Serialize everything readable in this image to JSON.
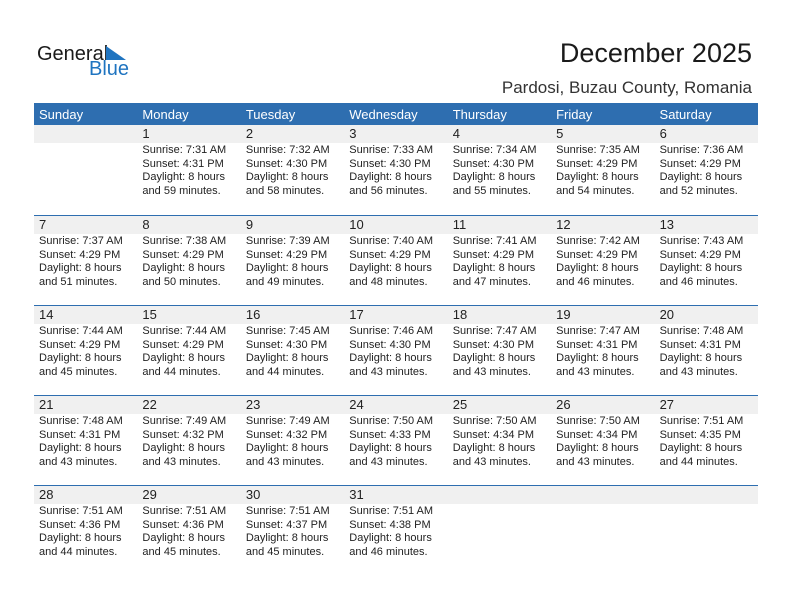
{
  "logo": {
    "line1": "General",
    "line2": "Blue",
    "accent": "#1f74c0"
  },
  "title": "December 2025",
  "location": "Pardosi, Buzau County, Romania",
  "colors": {
    "header": "#2e6eb0",
    "band": "#f0f0f0"
  },
  "weekdays": [
    "Sunday",
    "Monday",
    "Tuesday",
    "Wednesday",
    "Thursday",
    "Friday",
    "Saturday"
  ],
  "weeks": [
    [
      null,
      {
        "day": "1",
        "sunrise": "Sunrise: 7:31 AM",
        "sunset": "Sunset: 4:31 PM",
        "daylight1": "Daylight: 8 hours",
        "daylight2": "and 59 minutes."
      },
      {
        "day": "2",
        "sunrise": "Sunrise: 7:32 AM",
        "sunset": "Sunset: 4:30 PM",
        "daylight1": "Daylight: 8 hours",
        "daylight2": "and 58 minutes."
      },
      {
        "day": "3",
        "sunrise": "Sunrise: 7:33 AM",
        "sunset": "Sunset: 4:30 PM",
        "daylight1": "Daylight: 8 hours",
        "daylight2": "and 56 minutes."
      },
      {
        "day": "4",
        "sunrise": "Sunrise: 7:34 AM",
        "sunset": "Sunset: 4:30 PM",
        "daylight1": "Daylight: 8 hours",
        "daylight2": "and 55 minutes."
      },
      {
        "day": "5",
        "sunrise": "Sunrise: 7:35 AM",
        "sunset": "Sunset: 4:29 PM",
        "daylight1": "Daylight: 8 hours",
        "daylight2": "and 54 minutes."
      },
      {
        "day": "6",
        "sunrise": "Sunrise: 7:36 AM",
        "sunset": "Sunset: 4:29 PM",
        "daylight1": "Daylight: 8 hours",
        "daylight2": "and 52 minutes."
      }
    ],
    [
      {
        "day": "7",
        "sunrise": "Sunrise: 7:37 AM",
        "sunset": "Sunset: 4:29 PM",
        "daylight1": "Daylight: 8 hours",
        "daylight2": "and 51 minutes."
      },
      {
        "day": "8",
        "sunrise": "Sunrise: 7:38 AM",
        "sunset": "Sunset: 4:29 PM",
        "daylight1": "Daylight: 8 hours",
        "daylight2": "and 50 minutes."
      },
      {
        "day": "9",
        "sunrise": "Sunrise: 7:39 AM",
        "sunset": "Sunset: 4:29 PM",
        "daylight1": "Daylight: 8 hours",
        "daylight2": "and 49 minutes."
      },
      {
        "day": "10",
        "sunrise": "Sunrise: 7:40 AM",
        "sunset": "Sunset: 4:29 PM",
        "daylight1": "Daylight: 8 hours",
        "daylight2": "and 48 minutes."
      },
      {
        "day": "11",
        "sunrise": "Sunrise: 7:41 AM",
        "sunset": "Sunset: 4:29 PM",
        "daylight1": "Daylight: 8 hours",
        "daylight2": "and 47 minutes."
      },
      {
        "day": "12",
        "sunrise": "Sunrise: 7:42 AM",
        "sunset": "Sunset: 4:29 PM",
        "daylight1": "Daylight: 8 hours",
        "daylight2": "and 46 minutes."
      },
      {
        "day": "13",
        "sunrise": "Sunrise: 7:43 AM",
        "sunset": "Sunset: 4:29 PM",
        "daylight1": "Daylight: 8 hours",
        "daylight2": "and 46 minutes."
      }
    ],
    [
      {
        "day": "14",
        "sunrise": "Sunrise: 7:44 AM",
        "sunset": "Sunset: 4:29 PM",
        "daylight1": "Daylight: 8 hours",
        "daylight2": "and 45 minutes."
      },
      {
        "day": "15",
        "sunrise": "Sunrise: 7:44 AM",
        "sunset": "Sunset: 4:29 PM",
        "daylight1": "Daylight: 8 hours",
        "daylight2": "and 44 minutes."
      },
      {
        "day": "16",
        "sunrise": "Sunrise: 7:45 AM",
        "sunset": "Sunset: 4:30 PM",
        "daylight1": "Daylight: 8 hours",
        "daylight2": "and 44 minutes."
      },
      {
        "day": "17",
        "sunrise": "Sunrise: 7:46 AM",
        "sunset": "Sunset: 4:30 PM",
        "daylight1": "Daylight: 8 hours",
        "daylight2": "and 43 minutes."
      },
      {
        "day": "18",
        "sunrise": "Sunrise: 7:47 AM",
        "sunset": "Sunset: 4:30 PM",
        "daylight1": "Daylight: 8 hours",
        "daylight2": "and 43 minutes."
      },
      {
        "day": "19",
        "sunrise": "Sunrise: 7:47 AM",
        "sunset": "Sunset: 4:31 PM",
        "daylight1": "Daylight: 8 hours",
        "daylight2": "and 43 minutes."
      },
      {
        "day": "20",
        "sunrise": "Sunrise: 7:48 AM",
        "sunset": "Sunset: 4:31 PM",
        "daylight1": "Daylight: 8 hours",
        "daylight2": "and 43 minutes."
      }
    ],
    [
      {
        "day": "21",
        "sunrise": "Sunrise: 7:48 AM",
        "sunset": "Sunset: 4:31 PM",
        "daylight1": "Daylight: 8 hours",
        "daylight2": "and 43 minutes."
      },
      {
        "day": "22",
        "sunrise": "Sunrise: 7:49 AM",
        "sunset": "Sunset: 4:32 PM",
        "daylight1": "Daylight: 8 hours",
        "daylight2": "and 43 minutes."
      },
      {
        "day": "23",
        "sunrise": "Sunrise: 7:49 AM",
        "sunset": "Sunset: 4:32 PM",
        "daylight1": "Daylight: 8 hours",
        "daylight2": "and 43 minutes."
      },
      {
        "day": "24",
        "sunrise": "Sunrise: 7:50 AM",
        "sunset": "Sunset: 4:33 PM",
        "daylight1": "Daylight: 8 hours",
        "daylight2": "and 43 minutes."
      },
      {
        "day": "25",
        "sunrise": "Sunrise: 7:50 AM",
        "sunset": "Sunset: 4:34 PM",
        "daylight1": "Daylight: 8 hours",
        "daylight2": "and 43 minutes."
      },
      {
        "day": "26",
        "sunrise": "Sunrise: 7:50 AM",
        "sunset": "Sunset: 4:34 PM",
        "daylight1": "Daylight: 8 hours",
        "daylight2": "and 43 minutes."
      },
      {
        "day": "27",
        "sunrise": "Sunrise: 7:51 AM",
        "sunset": "Sunset: 4:35 PM",
        "daylight1": "Daylight: 8 hours",
        "daylight2": "and 44 minutes."
      }
    ],
    [
      {
        "day": "28",
        "sunrise": "Sunrise: 7:51 AM",
        "sunset": "Sunset: 4:36 PM",
        "daylight1": "Daylight: 8 hours",
        "daylight2": "and 44 minutes."
      },
      {
        "day": "29",
        "sunrise": "Sunrise: 7:51 AM",
        "sunset": "Sunset: 4:36 PM",
        "daylight1": "Daylight: 8 hours",
        "daylight2": "and 45 minutes."
      },
      {
        "day": "30",
        "sunrise": "Sunrise: 7:51 AM",
        "sunset": "Sunset: 4:37 PM",
        "daylight1": "Daylight: 8 hours",
        "daylight2": "and 45 minutes."
      },
      {
        "day": "31",
        "sunrise": "Sunrise: 7:51 AM",
        "sunset": "Sunset: 4:38 PM",
        "daylight1": "Daylight: 8 hours",
        "daylight2": "and 46 minutes."
      },
      null,
      null,
      null
    ]
  ]
}
